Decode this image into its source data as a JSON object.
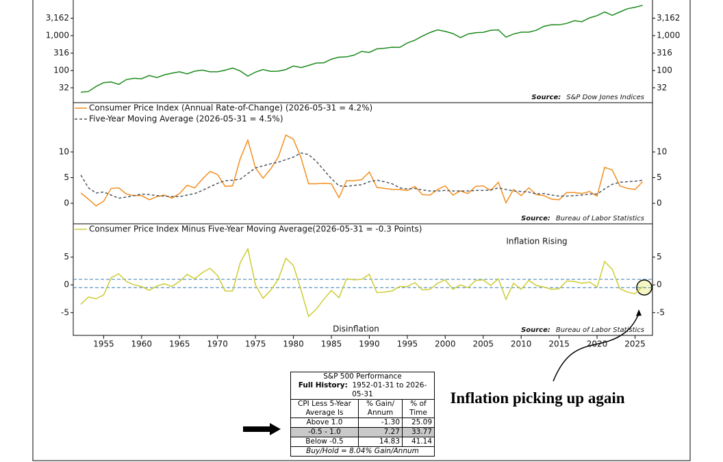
{
  "chart_data": [
    {
      "type": "line",
      "log_scale": true,
      "ylim": [
        12,
        11500
      ],
      "yticks": [
        {
          "value": 3162,
          "label": "3,162"
        },
        {
          "value": 1000,
          "label": "1,000"
        },
        316,
        100,
        32
      ],
      "source_label": "Source:",
      "source": "S&P Dow Jones Indices",
      "x": [
        1952,
        1953,
        1954,
        1955,
        1956,
        1957,
        1958,
        1959,
        1960,
        1961,
        1962,
        1963,
        1964,
        1965,
        1966,
        1967,
        1968,
        1969,
        1970,
        1971,
        1972,
        1973,
        1974,
        1975,
        1976,
        1977,
        1978,
        1979,
        1980,
        1981,
        1982,
        1983,
        1984,
        1985,
        1986,
        1987,
        1988,
        1989,
        1990,
        1991,
        1992,
        1993,
        1994,
        1995,
        1996,
        1997,
        1998,
        1999,
        2000,
        2001,
        2002,
        2003,
        2004,
        2005,
        2006,
        2007,
        2008,
        2009,
        2010,
        2011,
        2012,
        2013,
        2014,
        2015,
        2016,
        2017,
        2018,
        2019,
        2020,
        2021,
        2022,
        2023,
        2024,
        2025,
        2026
      ],
      "series": [
        {
          "name": null,
          "color": "#1a8a1a",
          "values": [
            24,
            25,
            35,
            45,
            47,
            40,
            55,
            60,
            58,
            72,
            63,
            75,
            84,
            92,
            80,
            96,
            103,
            92,
            92,
            102,
            118,
            97,
            69,
            90,
            107,
            95,
            96,
            107,
            135,
            122,
            140,
            164,
            167,
            211,
            242,
            247,
            277,
            353,
            330,
            417,
            435,
            466,
            459,
            615,
            740,
            970,
            1229,
            1469,
            1320,
            1148,
            880,
            1111,
            1211,
            1248,
            1418,
            1468,
            903,
            1115,
            1257,
            1257,
            1426,
            1848,
            2058,
            2043,
            2238,
            2673,
            2506,
            3230,
            3756,
            4766,
            3839,
            4769,
            5881,
            6500,
            7400
          ]
        }
      ]
    },
    {
      "type": "line",
      "ylim": [
        -4,
        19.6
      ],
      "yticks": [
        0,
        5,
        10
      ],
      "source_label": "Source:",
      "source": "Bureau of Labor Statistics",
      "x": [
        1952,
        1953,
        1954,
        1955,
        1956,
        1957,
        1958,
        1959,
        1960,
        1961,
        1962,
        1963,
        1964,
        1965,
        1966,
        1967,
        1968,
        1969,
        1970,
        1971,
        1972,
        1973,
        1974,
        1975,
        1976,
        1977,
        1978,
        1979,
        1980,
        1981,
        1982,
        1983,
        1984,
        1985,
        1986,
        1987,
        1988,
        1989,
        1990,
        1991,
        1992,
        1993,
        1994,
        1995,
        1996,
        1997,
        1998,
        1999,
        2000,
        2001,
        2002,
        2003,
        2004,
        2005,
        2006,
        2007,
        2008,
        2009,
        2010,
        2011,
        2012,
        2013,
        2014,
        2015,
        2016,
        2017,
        2018,
        2019,
        2020,
        2021,
        2022,
        2023,
        2024,
        2025,
        2026
      ],
      "series": [
        {
          "name": "Consumer Price Index (Annual Rate-of-Change) (2026-05-31 = 4.2%)",
          "color": "#f28e1e",
          "values": [
            2,
            0.8,
            -0.5,
            0.4,
            2.9,
            3,
            1.8,
            1.5,
            1.5,
            0.7,
            1.3,
            1.6,
            1,
            1.9,
            3.5,
            3,
            4.7,
            6.2,
            5.6,
            3.3,
            3.4,
            8.7,
            12.3,
            6.9,
            4.9,
            6.7,
            9,
            13.3,
            12.5,
            8.9,
            3.8,
            3.8,
            3.9,
            3.8,
            1.1,
            4.4,
            4.4,
            4.6,
            6.1,
            3.1,
            2.9,
            2.7,
            2.7,
            2.5,
            3.3,
            1.7,
            1.6,
            2.7,
            3.4,
            1.6,
            2.4,
            1.9,
            3.3,
            3.4,
            2.5,
            4.1,
            0.1,
            2.7,
            1.5,
            3,
            1.7,
            1.5,
            0.8,
            0.7,
            2.1,
            2.1,
            1.9,
            2.3,
            1.4,
            7,
            6.5,
            3.4,
            2.9,
            2.7,
            4.2
          ]
        },
        {
          "name": "Five-Year Moving Average (2026-05-31 = 4.5%)",
          "color": "#4a5560",
          "dash": true,
          "values": [
            5.5,
            3,
            2,
            2.2,
            1.6,
            1,
            1.2,
            1.5,
            1.8,
            1.7,
            1.5,
            1.4,
            1.3,
            1.3,
            1.6,
            1.9,
            2.5,
            3.2,
            3.9,
            4.4,
            4.5,
            4.7,
            5.8,
            6.9,
            7.3,
            7.7,
            8,
            8.5,
            9,
            9.8,
            9.5,
            8.2,
            6.5,
            4.8,
            3.4,
            3.3,
            3.5,
            3.6,
            4.2,
            4.5,
            4.2,
            3.8,
            3,
            2.8,
            2.9,
            2.6,
            2.4,
            2.4,
            2.5,
            2.4,
            2.4,
            2.4,
            2.5,
            2.5,
            2.6,
            3,
            2.7,
            2.4,
            2.3,
            2.2,
            1.8,
            1.9,
            1.6,
            1.4,
            1.4,
            1.5,
            1.6,
            1.8,
            1.8,
            2.8,
            3.7,
            4.1,
            4.2,
            4.3,
            4.5
          ]
        }
      ]
    },
    {
      "type": "line",
      "ylim": [
        -9.1,
        11
      ],
      "yticks": [
        -5,
        0,
        5
      ],
      "hlines": [
        1,
        -0.5
      ],
      "xlim": [
        1951,
        2027.3
      ],
      "xticks": [
        1955,
        1960,
        1965,
        1970,
        1975,
        1980,
        1985,
        1990,
        1995,
        2000,
        2005,
        2010,
        2015,
        2020,
        2025
      ],
      "source_label": "Source:",
      "source": "Bureau of Labor Statistics",
      "annotations": [
        "Inflation Rising",
        "Disinflation"
      ],
      "x": [
        1952,
        1953,
        1954,
        1955,
        1956,
        1957,
        1958,
        1959,
        1960,
        1961,
        1962,
        1963,
        1964,
        1965,
        1966,
        1967,
        1968,
        1969,
        1970,
        1971,
        1972,
        1973,
        1974,
        1975,
        1976,
        1977,
        1978,
        1979,
        1980,
        1981,
        1982,
        1983,
        1984,
        1985,
        1986,
        1987,
        1988,
        1989,
        1990,
        1991,
        1992,
        1993,
        1994,
        1995,
        1996,
        1997,
        1998,
        1999,
        2000,
        2001,
        2002,
        2003,
        2004,
        2005,
        2006,
        2007,
        2008,
        2009,
        2010,
        2011,
        2012,
        2013,
        2014,
        2015,
        2016,
        2017,
        2018,
        2019,
        2020,
        2021,
        2022,
        2023,
        2024,
        2025,
        2026
      ],
      "series": [
        {
          "name": "Consumer Price Index Minus Five-Year Moving Average(2026-05-31 = -0.3 Points)",
          "color": "#cccc33",
          "values": [
            -3.5,
            -2.2,
            -2.5,
            -1.8,
            1.3,
            2,
            0.6,
            0,
            -0.3,
            -1,
            -0.2,
            0.2,
            -0.3,
            0.6,
            1.9,
            1.1,
            2.2,
            3,
            1.7,
            -1.1,
            -1.1,
            4,
            6.5,
            0,
            -2.4,
            -1,
            1,
            4.8,
            3.5,
            -0.9,
            -5.7,
            -4.4,
            -2.6,
            -1,
            -2.3,
            1.1,
            0.9,
            1,
            1.9,
            -1.4,
            -1.3,
            -1.1,
            -0.3,
            -0.3,
            0.4,
            -0.9,
            -0.8,
            0.3,
            0.9,
            -0.8,
            0,
            -0.5,
            0.8,
            0.9,
            -0.1,
            1.1,
            -2.6,
            0.3,
            -0.8,
            0.8,
            -0.1,
            -0.4,
            -0.8,
            -0.7,
            0.7,
            0.6,
            0.3,
            0.5,
            -0.4,
            4.2,
            2.8,
            -0.7,
            -1.3,
            -1.6,
            -0.3
          ]
        }
      ]
    }
  ],
  "table": {
    "title": "S&P 500 Performance",
    "history_label": "Full History:",
    "history": "1952-01-31 to 2026-05-31",
    "headers": [
      "CPI Less 5-Year Average Is",
      "% Gain/ Annum",
      "% of Time"
    ],
    "rows": [
      [
        "Above 1.0",
        "-1.30",
        "25.09"
      ],
      [
        "-0.5 - 1.0",
        "7.27",
        "33.77"
      ],
      [
        "Below -0.5",
        "14.83",
        "41.14"
      ]
    ],
    "footer": "Buy/Hold = 8.04% Gain/Annum"
  },
  "note": "Inflation picking up again"
}
